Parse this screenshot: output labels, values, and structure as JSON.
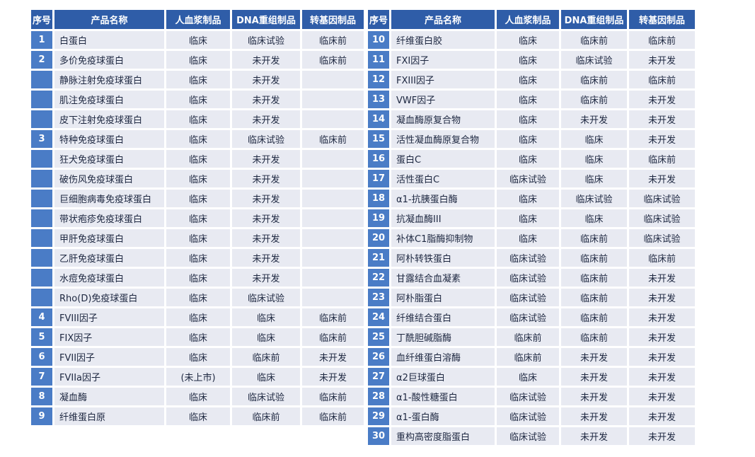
{
  "columns": [
    "序号",
    "产品名称",
    "人血浆制品",
    "DNA重组制品",
    "转基因制品"
  ],
  "colors": {
    "header_bg": "#2f5da8",
    "index_bg": "#4a7cc6",
    "row_bg": "#e8eaf2",
    "header_text": "#ffffff",
    "cell_text": "#1d2740",
    "grid_gap": "#ffffff"
  },
  "left_table": {
    "rows": [
      {
        "no": "1",
        "name": "白蛋白",
        "plasma": "临床",
        "dna": "临床试验",
        "trans": "临床前"
      },
      {
        "no": "2",
        "name": "多价免疫球蛋白",
        "plasma": "临床",
        "dna": "未开发",
        "trans": "临床前"
      },
      {
        "no": "",
        "name": "静脉注射免疫球蛋白",
        "plasma": "临床",
        "dna": "未开发",
        "trans": ""
      },
      {
        "no": "",
        "name": "肌注免疫球蛋白",
        "plasma": "临床",
        "dna": "未开发",
        "trans": ""
      },
      {
        "no": "",
        "name": "皮下注射免疫球蛋白",
        "plasma": "临床",
        "dna": "未开发",
        "trans": ""
      },
      {
        "no": "3",
        "name": "特种免疫球蛋白",
        "plasma": "临床",
        "dna": "临床试验",
        "trans": "临床前"
      },
      {
        "no": "",
        "name": "狂犬免疫球蛋白",
        "plasma": "临床",
        "dna": "未开发",
        "trans": ""
      },
      {
        "no": "",
        "name": "破伤风免疫球蛋白",
        "plasma": "临床",
        "dna": "未开发",
        "trans": ""
      },
      {
        "no": "",
        "name": "巨细胞病毒免疫球蛋白",
        "plasma": "临床",
        "dna": "未开发",
        "trans": ""
      },
      {
        "no": "",
        "name": "带状疱疹免疫球蛋白",
        "plasma": "临床",
        "dna": "未开发",
        "trans": ""
      },
      {
        "no": "",
        "name": "甲肝免疫球蛋白",
        "plasma": "临床",
        "dna": "未开发",
        "trans": ""
      },
      {
        "no": "",
        "name": "乙肝免疫球蛋白",
        "plasma": "临床",
        "dna": "未开发",
        "trans": ""
      },
      {
        "no": "",
        "name": "水痘免疫球蛋白",
        "plasma": "临床",
        "dna": "未开发",
        "trans": ""
      },
      {
        "no": "",
        "name": "Rho(D)免疫球蛋白",
        "plasma": "临床",
        "dna": "临床试验",
        "trans": ""
      },
      {
        "no": "4",
        "name": "FVIII因子",
        "plasma": "临床",
        "dna": "临床",
        "trans": "临床前"
      },
      {
        "no": "5",
        "name": "FIX因子",
        "plasma": "临床",
        "dna": "临床",
        "trans": "临床前"
      },
      {
        "no": "6",
        "name": "FVII因子",
        "plasma": "临床",
        "dna": "临床前",
        "trans": "未开发"
      },
      {
        "no": "7",
        "name": "FVIIa因子",
        "plasma": "(未上市)",
        "dna": "临床",
        "trans": "未开发"
      },
      {
        "no": "8",
        "name": "凝血酶",
        "plasma": "临床",
        "dna": "临床试验",
        "trans": "临床前"
      },
      {
        "no": "9",
        "name": "纤维蛋白原",
        "plasma": "临床",
        "dna": "临床前",
        "trans": "临床前"
      }
    ]
  },
  "right_table": {
    "rows": [
      {
        "no": "10",
        "name": "纤维蛋白胶",
        "plasma": "临床",
        "dna": "临床前",
        "trans": "临床前"
      },
      {
        "no": "11",
        "name": "FXI因子",
        "plasma": "临床",
        "dna": "临床试验",
        "trans": "未开发"
      },
      {
        "no": "12",
        "name": "FXIII因子",
        "plasma": "临床",
        "dna": "临床前",
        "trans": "临床前"
      },
      {
        "no": "13",
        "name": "VWF因子",
        "plasma": "临床",
        "dna": "临床前",
        "trans": "未开发"
      },
      {
        "no": "14",
        "name": "凝血酶原复合物",
        "plasma": "临床",
        "dna": "未开发",
        "trans": "未开发"
      },
      {
        "no": "15",
        "name": "活性凝血酶原复合物",
        "plasma": "临床",
        "dna": "临床",
        "trans": "未开发"
      },
      {
        "no": "16",
        "name": "蛋白C",
        "plasma": "临床",
        "dna": "临床",
        "trans": "临床前"
      },
      {
        "no": "17",
        "name": "活性蛋白C",
        "plasma": "临床试验",
        "dna": "临床",
        "trans": "未开发"
      },
      {
        "no": "18",
        "name": "α1-抗胰蛋白酶",
        "plasma": "临床",
        "dna": "临床试验",
        "trans": "临床试验"
      },
      {
        "no": "19",
        "name": "抗凝血酶III",
        "plasma": "临床",
        "dna": "临床",
        "trans": "临床试验"
      },
      {
        "no": "20",
        "name": "补体C1脂酶抑制物",
        "plasma": "临床",
        "dna": "临床前",
        "trans": "临床试验"
      },
      {
        "no": "21",
        "name": "阿朴转铁蛋白",
        "plasma": "临床试验",
        "dna": "临床前",
        "trans": "临床前"
      },
      {
        "no": "22",
        "name": "甘露结合血凝素",
        "plasma": "临床试验",
        "dna": "临床前",
        "trans": "未开发"
      },
      {
        "no": "23",
        "name": "阿朴脂蛋白",
        "plasma": "临床试验",
        "dna": "临床前",
        "trans": "未开发"
      },
      {
        "no": "24",
        "name": "纤维结合蛋白",
        "plasma": "临床试验",
        "dna": "临床前",
        "trans": "未开发"
      },
      {
        "no": "25",
        "name": "丁酰胆碱脂酶",
        "plasma": "临床前",
        "dna": "临床前",
        "trans": "未开发"
      },
      {
        "no": "26",
        "name": "血纤维蛋白溶酶",
        "plasma": "临床前",
        "dna": "未开发",
        "trans": "未开发"
      },
      {
        "no": "27",
        "name": "α2巨球蛋白",
        "plasma": "临床",
        "dna": "未开发",
        "trans": "未开发"
      },
      {
        "no": "28",
        "name": "α1-酸性糖蛋白",
        "plasma": "临床试验",
        "dna": "未开发",
        "trans": "未开发"
      },
      {
        "no": "29",
        "name": "α1-蛋白酶",
        "plasma": "临床试验",
        "dna": "未开发",
        "trans": "未开发"
      },
      {
        "no": "30",
        "name": "重构高密度脂蛋白",
        "plasma": "临床试验",
        "dna": "未开发",
        "trans": "未开发"
      }
    ]
  }
}
